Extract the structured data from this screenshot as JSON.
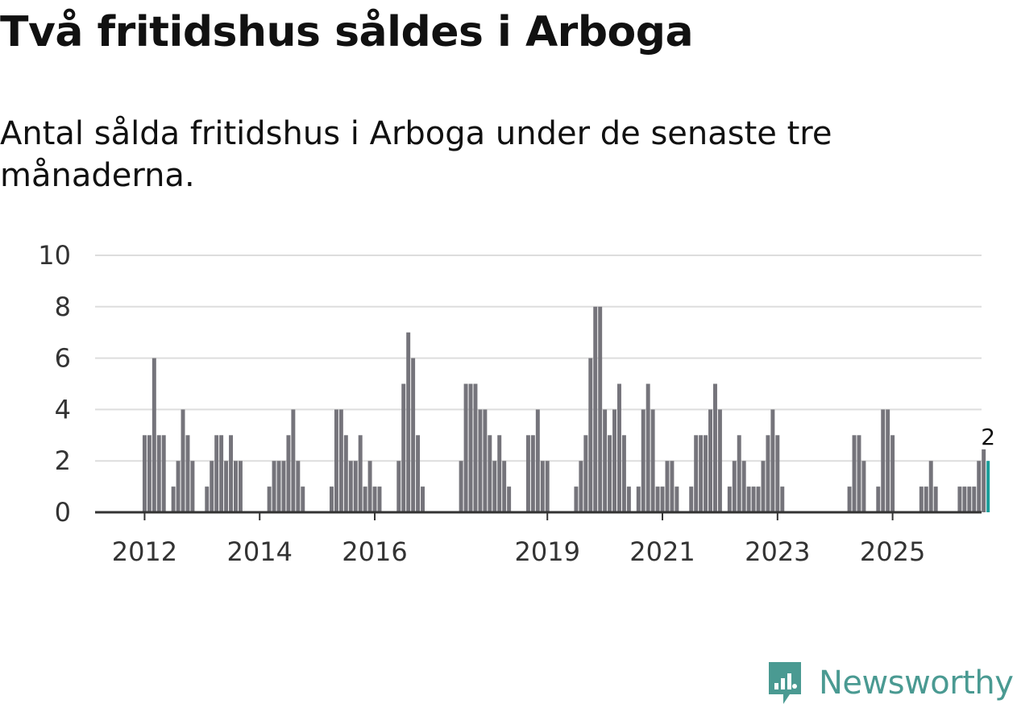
{
  "title": "Två fritidshus såldes i Arboga",
  "subtitle": "Antal sålda fritidshus i Arboga under de senaste tre månaderna.",
  "brand": {
    "name": "Newsworthy",
    "icon": "newsworthy-logo-icon",
    "color": "#4a9a92"
  },
  "colors": {
    "bar": "#75747b",
    "highlight": "#1a9e9a",
    "grid": "#dddddd",
    "axis": "#333333"
  },
  "chart_data": {
    "type": "bar",
    "title": "",
    "xlabel": "",
    "ylabel": "",
    "ylim": [
      0,
      10
    ],
    "yticks": [
      0,
      2,
      4,
      6,
      8,
      10
    ],
    "xticks": [
      {
        "label": "2012",
        "date": "2012-01"
      },
      {
        "label": "2014",
        "date": "2014-01"
      },
      {
        "label": "2016",
        "date": "2016-01"
      },
      {
        "label": "2019",
        "date": "2019-01"
      },
      {
        "label": "2021",
        "date": "2021-01"
      },
      {
        "label": "2023",
        "date": "2023-01"
      },
      {
        "label": "2025",
        "date": "2025-01"
      }
    ],
    "grid": true,
    "start": "2011-12",
    "values": [
      0,
      3,
      3,
      6,
      3,
      3,
      0,
      1,
      2,
      4,
      3,
      2,
      0,
      0,
      1,
      2,
      3,
      3,
      2,
      3,
      2,
      2,
      0,
      0,
      0,
      0,
      0,
      1,
      2,
      2,
      2,
      3,
      4,
      2,
      1,
      0,
      0,
      0,
      0,
      0,
      1,
      4,
      4,
      3,
      2,
      2,
      3,
      1,
      2,
      1,
      1,
      0,
      0,
      0,
      2,
      5,
      7,
      6,
      3,
      1,
      0,
      0,
      0,
      0,
      0,
      0,
      0,
      2,
      5,
      5,
      5,
      4,
      4,
      3,
      2,
      3,
      2,
      1,
      0,
      0,
      0,
      3,
      3,
      4,
      2,
      2,
      0,
      0,
      0,
      0,
      0,
      1,
      2,
      3,
      6,
      8,
      8,
      4,
      3,
      4,
      5,
      3,
      1,
      0,
      1,
      4,
      5,
      4,
      1,
      1,
      2,
      2,
      1,
      0,
      0,
      1,
      3,
      3,
      3,
      4,
      5,
      4,
      0,
      1,
      2,
      3,
      2,
      1,
      1,
      1,
      2,
      3,
      4,
      3,
      1,
      0,
      0,
      0,
      0,
      0,
      0,
      0,
      0,
      0,
      0,
      0,
      0,
      0,
      1,
      3,
      3,
      2,
      0,
      0,
      1,
      4,
      4,
      3,
      0,
      0,
      0,
      0,
      0,
      1,
      1,
      2,
      1,
      0,
      0,
      0,
      0,
      1,
      1,
      1,
      1,
      2,
      2.45,
      2
    ],
    "highlight_last": true,
    "highlight_label": "2"
  }
}
